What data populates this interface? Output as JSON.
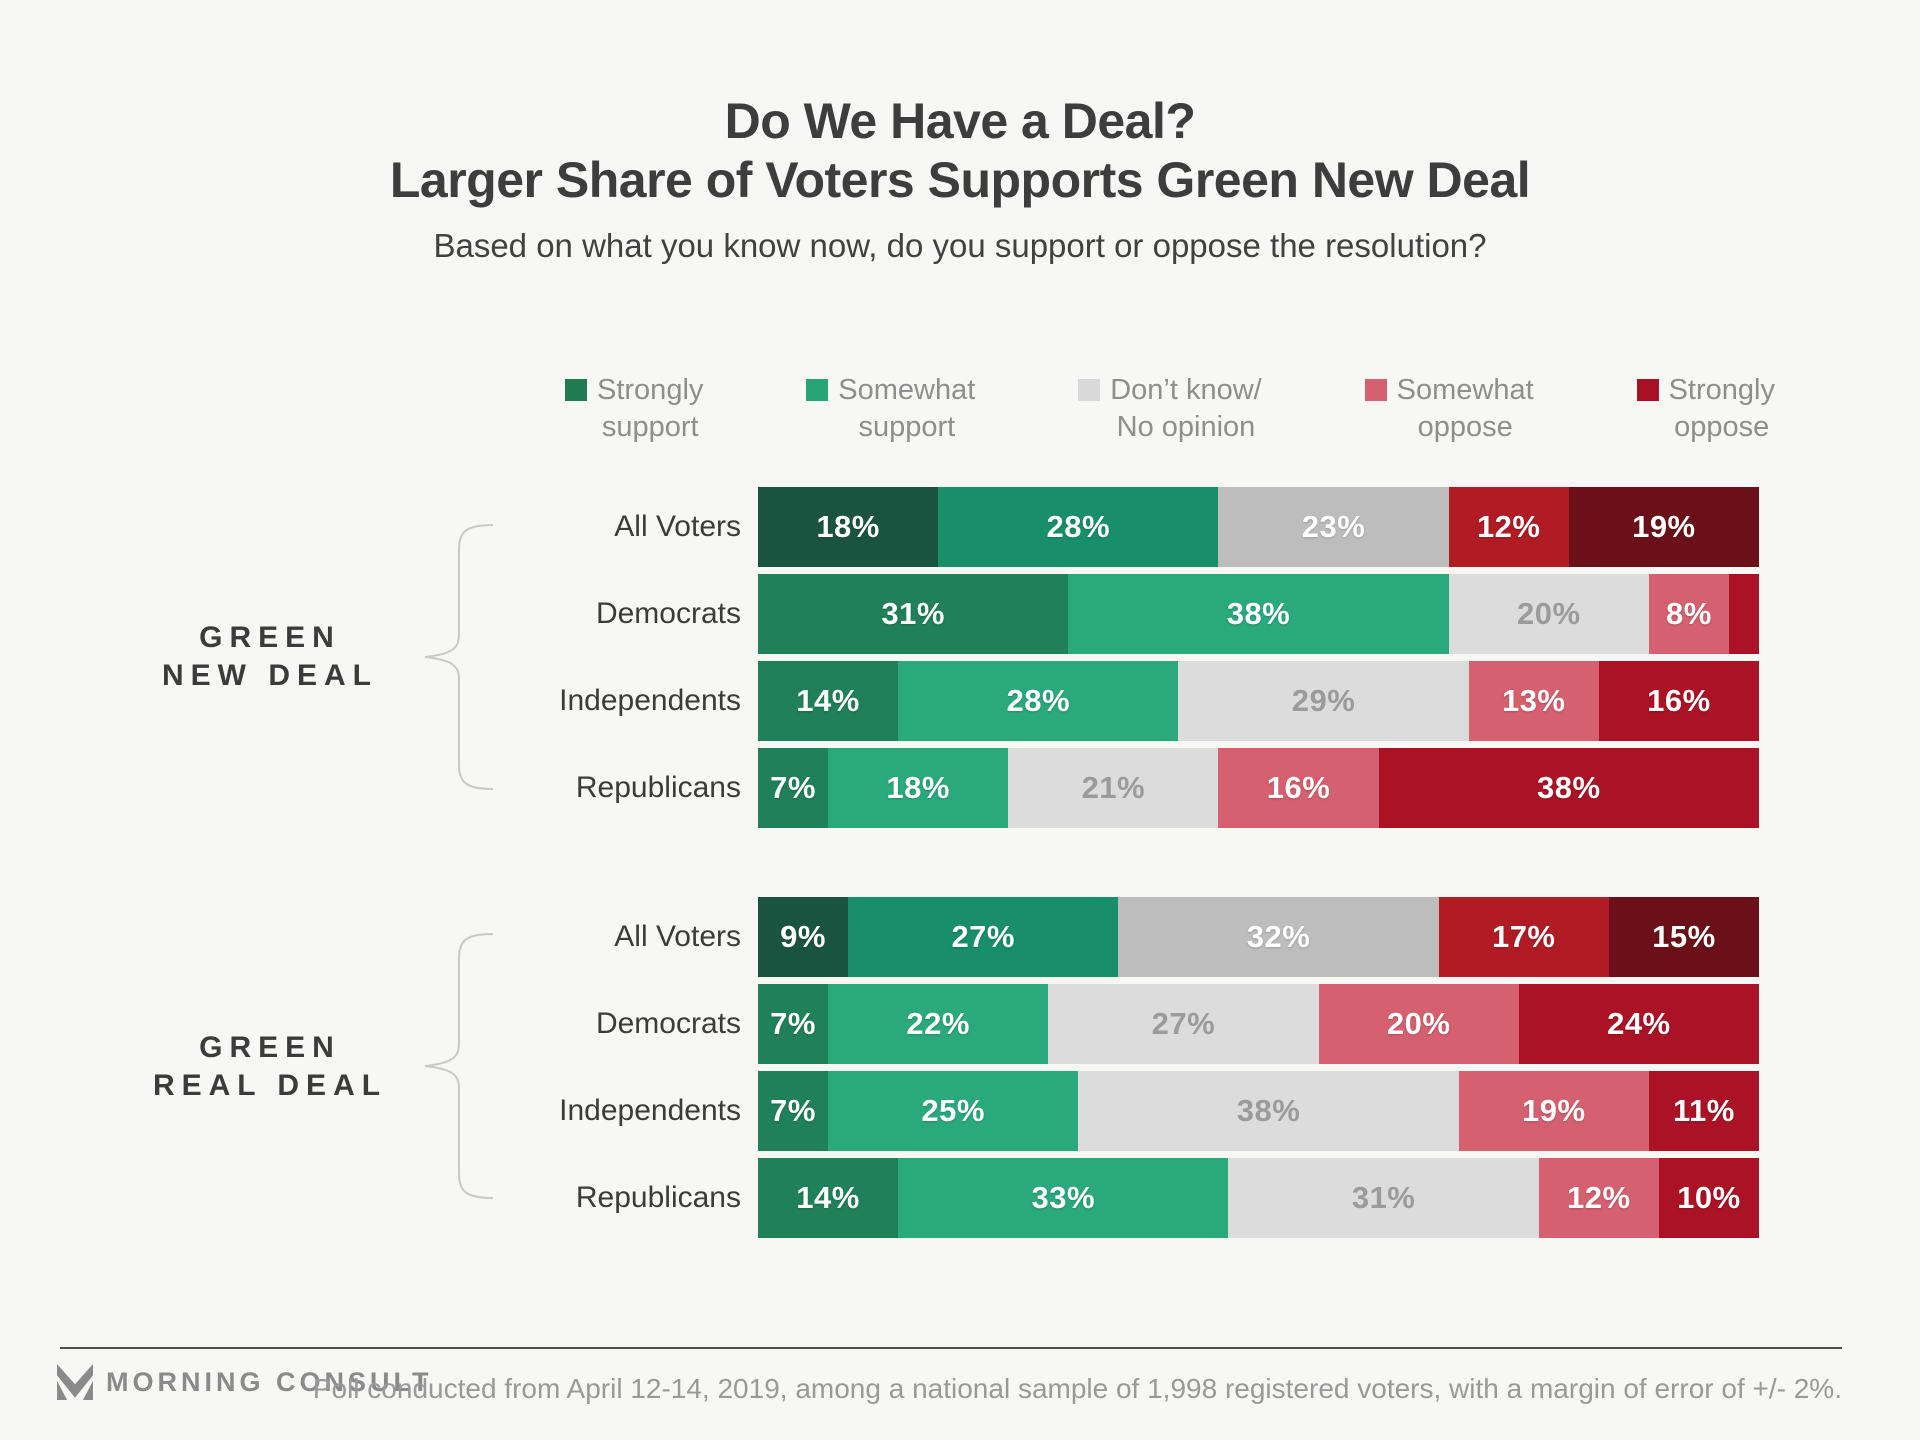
{
  "header": {
    "title_line1": "Do We Have a Deal?",
    "title_line2": "Larger Share of Voters Supports Green New Deal",
    "subtitle": "Based on what you know now, do you support or oppose the resolution?"
  },
  "legend": {
    "items": [
      {
        "line1": "Strongly",
        "line2": "support",
        "color": "#1e7b52"
      },
      {
        "line1": "Somewhat",
        "line2": "support",
        "color": "#27a579"
      },
      {
        "line1": "Don’t know/",
        "line2": "No opinion",
        "color": "#d9d9d9"
      },
      {
        "line1": "Somewhat",
        "line2": "oppose",
        "color": "#d5606f"
      },
      {
        "line1": "Strongly",
        "line2": "oppose",
        "color": "#a81226"
      }
    ]
  },
  "chart_data": {
    "type": "bar",
    "variant": "horizontal-stacked-percent",
    "unit": "%",
    "xlim": [
      0,
      100
    ],
    "series_names": [
      "Strongly support",
      "Somewhat support",
      "Don't know/No opinion",
      "Somewhat oppose",
      "Strongly oppose"
    ],
    "palette_default": [
      "#1f8059",
      "#2aa97d",
      "#dcdcdc",
      "#d5606f",
      "#ab1226"
    ],
    "palette_emphasis": [
      "#1a5440",
      "#188f69",
      "#bdbdbd",
      "#b01b24",
      "#6b1019"
    ],
    "groups": [
      {
        "label_line1": "GREEN",
        "label_line2": "NEW DEAL",
        "rows": [
          {
            "category": "All Voters",
            "emphasis": true,
            "values": [
              18,
              28,
              23,
              12,
              19
            ],
            "labels": [
              "18%",
              "28%",
              "23%",
              "12%",
              "19%"
            ]
          },
          {
            "category": "Democrats",
            "emphasis": false,
            "values": [
              31,
              38,
              20,
              8,
              3
            ],
            "labels": [
              "31%",
              "38%",
              "20%",
              "8%",
              ""
            ]
          },
          {
            "category": "Independents",
            "emphasis": false,
            "values": [
              14,
              28,
              29,
              13,
              16
            ],
            "labels": [
              "14%",
              "28%",
              "29%",
              "13%",
              "16%"
            ]
          },
          {
            "category": "Republicans",
            "emphasis": false,
            "values": [
              7,
              18,
              21,
              16,
              38
            ],
            "labels": [
              "7%",
              "18%",
              "21%",
              "16%",
              "38%"
            ]
          }
        ]
      },
      {
        "label_line1": "GREEN",
        "label_line2": "REAL DEAL",
        "rows": [
          {
            "category": "All Voters",
            "emphasis": true,
            "values": [
              9,
              27,
              32,
              17,
              15
            ],
            "labels": [
              "9%",
              "27%",
              "32%",
              "17%",
              "15%"
            ]
          },
          {
            "category": "Democrats",
            "emphasis": false,
            "values": [
              7,
              22,
              27,
              20,
              24
            ],
            "labels": [
              "7%",
              "22%",
              "27%",
              "20%",
              "24%"
            ]
          },
          {
            "category": "Independents",
            "emphasis": false,
            "values": [
              7,
              25,
              38,
              19,
              11
            ],
            "labels": [
              "7%",
              "25%",
              "38%",
              "19%",
              "11%"
            ]
          },
          {
            "category": "Republicans",
            "emphasis": false,
            "values": [
              14,
              33,
              31,
              12,
              10
            ],
            "labels": [
              "14%",
              "33%",
              "31%",
              "12%",
              "10%"
            ]
          }
        ]
      }
    ]
  },
  "footer": {
    "brand": "MORNING CONSULT",
    "note": "Poll conducted from April 12-14, 2019, among a national sample of 1,998 registered voters, with a margin of error of +/- 2%."
  }
}
